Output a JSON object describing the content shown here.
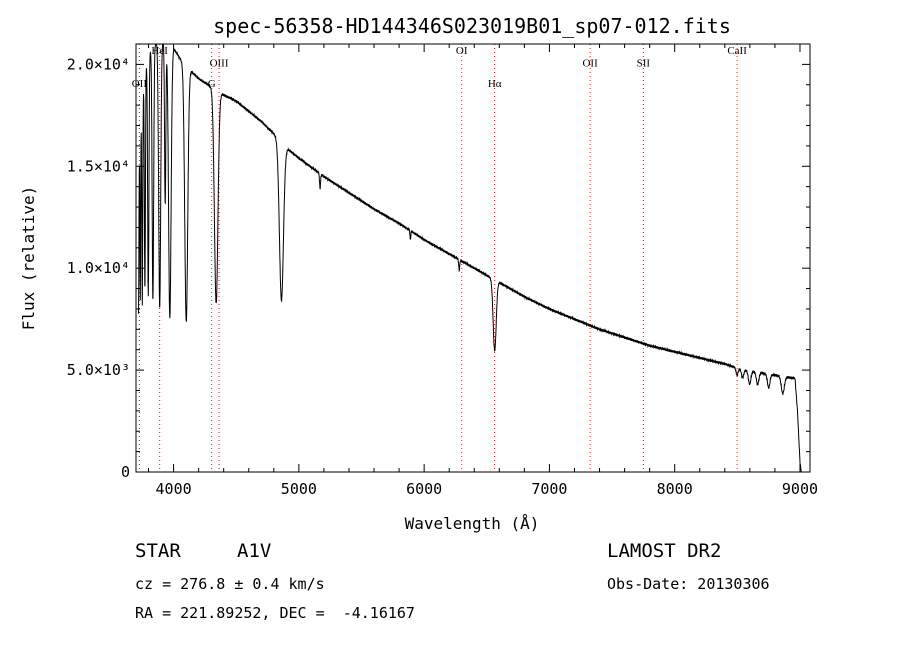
{
  "chart_data": {
    "type": "line",
    "title": "spec-56358-HD144346S023019B01_sp07-012.fits",
    "xlabel": "Wavelength (Å)",
    "ylabel": "Flux (relative)",
    "xlim": [
      3700,
      9080
    ],
    "ylim": [
      0,
      21000
    ],
    "grid": false,
    "x_ticks": [
      {
        "value": 4000,
        "label": "4000"
      },
      {
        "value": 5000,
        "label": "5000"
      },
      {
        "value": 6000,
        "label": "6000"
      },
      {
        "value": 7000,
        "label": "7000"
      },
      {
        "value": 8000,
        "label": "8000"
      },
      {
        "value": 9000,
        "label": "9000"
      }
    ],
    "y_ticks": [
      {
        "value": 0,
        "label": "0"
      },
      {
        "value": 5000,
        "label": "5.0×10³"
      },
      {
        "value": 10000,
        "label": "1.0×10⁴"
      },
      {
        "value": 15000,
        "label": "1.5×10⁴"
      },
      {
        "value": 20000,
        "label": "2.0×10⁴"
      }
    ],
    "continuum": [
      [
        3720,
        15500
      ],
      [
        3740,
        17500
      ],
      [
        3760,
        19000
      ],
      [
        3780,
        20000
      ],
      [
        3800,
        20500
      ],
      [
        3850,
        21000
      ],
      [
        3900,
        21200
      ],
      [
        3950,
        21000
      ],
      [
        4000,
        20800
      ],
      [
        4050,
        20300
      ],
      [
        4100,
        19900
      ],
      [
        4150,
        19600
      ],
      [
        4200,
        19300
      ],
      [
        4250,
        19100
      ],
      [
        4300,
        18900
      ],
      [
        4350,
        18700
      ],
      [
        4400,
        18500
      ],
      [
        4500,
        18200
      ],
      [
        4600,
        17700
      ],
      [
        4700,
        17200
      ],
      [
        4800,
        16600
      ],
      [
        4900,
        15900
      ],
      [
        5000,
        15400
      ],
      [
        5200,
        14500
      ],
      [
        5400,
        13700
      ],
      [
        5600,
        12900
      ],
      [
        5800,
        12200
      ],
      [
        6000,
        11400
      ],
      [
        6200,
        10700
      ],
      [
        6400,
        10000
      ],
      [
        6600,
        9300
      ],
      [
        6800,
        8600
      ],
      [
        7000,
        8000
      ],
      [
        7200,
        7500
      ],
      [
        7400,
        7000
      ],
      [
        7600,
        6600
      ],
      [
        7800,
        6200
      ],
      [
        8000,
        5900
      ],
      [
        8200,
        5600
      ],
      [
        8400,
        5300
      ],
      [
        8500,
        5100
      ],
      [
        8600,
        4950
      ],
      [
        8700,
        4850
      ],
      [
        8800,
        4750
      ],
      [
        8900,
        4650
      ],
      [
        8960,
        4600
      ],
      [
        8980,
        3000
      ],
      [
        9000,
        500
      ],
      [
        9010,
        0
      ]
    ],
    "absorption_lines": [
      {
        "center": 3720,
        "width": 3,
        "depth": 0.5
      },
      {
        "center": 3734,
        "width": 3,
        "depth": 0.5
      },
      {
        "center": 3750,
        "width": 3.5,
        "depth": 0.55
      },
      {
        "center": 3771,
        "width": 4,
        "depth": 0.55
      },
      {
        "center": 3798,
        "width": 5,
        "depth": 0.58
      },
      {
        "center": 3835,
        "width": 6,
        "depth": 0.6
      },
      {
        "center": 3889,
        "width": 8,
        "depth": 0.62
      },
      {
        "center": 3933,
        "width": 5,
        "depth": 0.38
      },
      {
        "center": 3970,
        "width": 10,
        "depth": 0.64
      },
      {
        "center": 4101,
        "width": 12,
        "depth": 0.63
      },
      {
        "center": 4340,
        "width": 14,
        "depth": 0.56
      },
      {
        "center": 4861,
        "width": 16,
        "depth": 0.48
      },
      {
        "center": 5169,
        "width": 4,
        "depth": 0.05
      },
      {
        "center": 5890,
        "width": 3,
        "depth": 0.04
      },
      {
        "center": 6280,
        "width": 4,
        "depth": 0.05
      },
      {
        "center": 6563,
        "width": 12,
        "depth": 0.37
      },
      {
        "center": 8498,
        "width": 8,
        "depth": 0.07
      },
      {
        "center": 8542,
        "width": 9,
        "depth": 0.08
      },
      {
        "center": 8598,
        "width": 10,
        "depth": 0.13
      },
      {
        "center": 8662,
        "width": 10,
        "depth": 0.12
      },
      {
        "center": 8750,
        "width": 10,
        "depth": 0.14
      },
      {
        "center": 8863,
        "width": 12,
        "depth": 0.18
      }
    ],
    "line_markers": [
      {
        "label": "OII",
        "x": 3727,
        "label_y": 18900
      },
      {
        "label": "HeI",
        "x": 3889,
        "label_y": 20500
      },
      {
        "label": "G",
        "x": 4304,
        "label_y": 18900
      },
      {
        "label": "OIII",
        "x": 4363,
        "label_y": 19900
      },
      {
        "label": "OI",
        "x": 6300,
        "label_y": 20500
      },
      {
        "label": "Hα",
        "x": 6563,
        "label_y": 18900
      },
      {
        "label": "OII",
        "x": 7325,
        "label_y": 19900
      },
      {
        "label": "SII",
        "x": 7750,
        "label_y": 19900
      },
      {
        "label": "CaII",
        "x": 8498,
        "label_y": 20500
      }
    ]
  },
  "info": {
    "object_type": "STAR",
    "subclass": "A1V",
    "survey": "LAMOST DR2",
    "cz": "cz = 276.8 ± 0.4 km/s",
    "obs_date": "Obs-Date: 20130306",
    "coords": "RA = 221.89252, DEC =  -4.16167"
  },
  "colors": {
    "marker": "#d62020",
    "spectrum": "#000000"
  }
}
